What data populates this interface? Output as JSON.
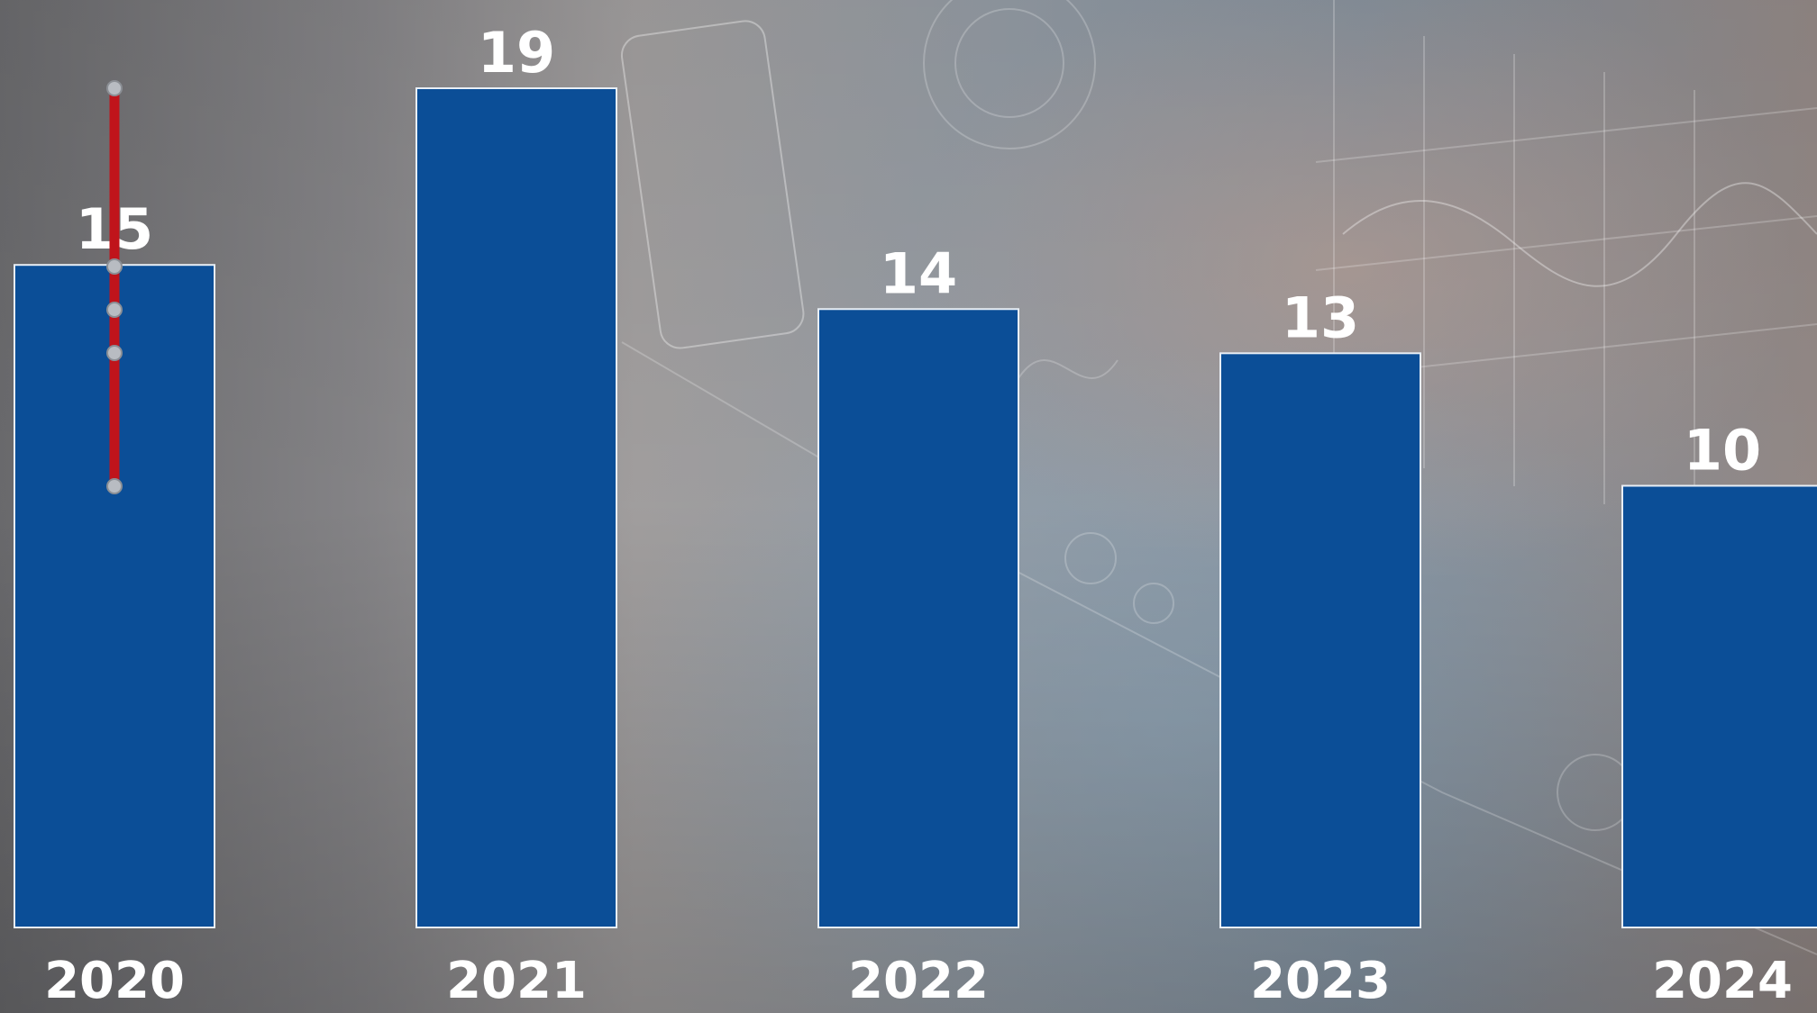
{
  "colors": {
    "bar": "#0b4e97",
    "bar_border": "#e8eef5",
    "label": "#ffffff",
    "handle": "#c0141b"
  },
  "chart_data": {
    "type": "bar",
    "categories": [
      "2020",
      "2021",
      "2022",
      "2023",
      "2024"
    ],
    "values": [
      15,
      19,
      14,
      13,
      10
    ],
    "title": "",
    "xlabel": "",
    "ylabel": "",
    "ylim": [
      0,
      19
    ],
    "grid": false,
    "legend": "none",
    "data_labels": true
  },
  "overlay": {
    "icon": "selection-handle-icon"
  }
}
